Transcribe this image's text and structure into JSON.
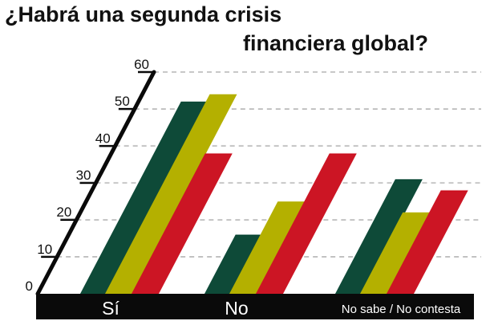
{
  "title_lines": [
    "¿Habrá una segunda crisis",
    "financiera global?"
  ],
  "chart_data": {
    "type": "bar",
    "title": "¿Habrá una segunda crisis financiera global?",
    "categories": [
      "Sí",
      "No",
      "No sabe / No contesta"
    ],
    "series": [
      {
        "values": [
          52,
          16,
          31
        ],
        "color": "#0e4a38"
      },
      {
        "values": [
          54,
          25,
          22
        ],
        "color": "#b4b000"
      },
      {
        "values": [
          38,
          38,
          28
        ],
        "color": "#cc1524"
      }
    ],
    "ylim": [
      0,
      60
    ],
    "yticks": [
      0,
      10,
      20,
      30,
      40,
      50,
      60
    ],
    "grid": true,
    "gridline_style": "dashed",
    "legend": "none"
  }
}
